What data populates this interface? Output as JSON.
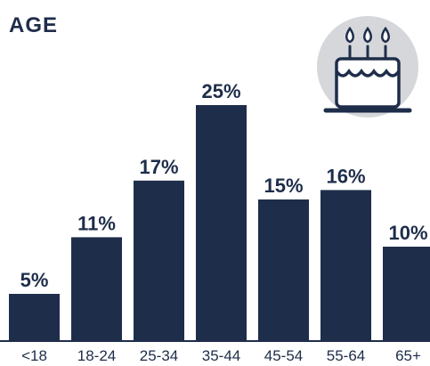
{
  "title": "AGE",
  "icon": "birthday-cake-icon",
  "colors": {
    "bar": "#1e2d4a",
    "text": "#1e2d4a",
    "axis": "#1e2d4a",
    "icon_circle": "#d5d7db"
  },
  "chart_data": {
    "type": "bar",
    "title": "AGE",
    "categories": [
      "<18",
      "18-24",
      "25-34",
      "35-44",
      "45-54",
      "55-64",
      "65+"
    ],
    "values": [
      5,
      11,
      17,
      25,
      15,
      16,
      10
    ],
    "data_labels": [
      "5%",
      "11%",
      "17%",
      "25%",
      "15%",
      "16%",
      "10%"
    ],
    "ylim": [
      0,
      25
    ],
    "grid": false,
    "legend": "none"
  }
}
